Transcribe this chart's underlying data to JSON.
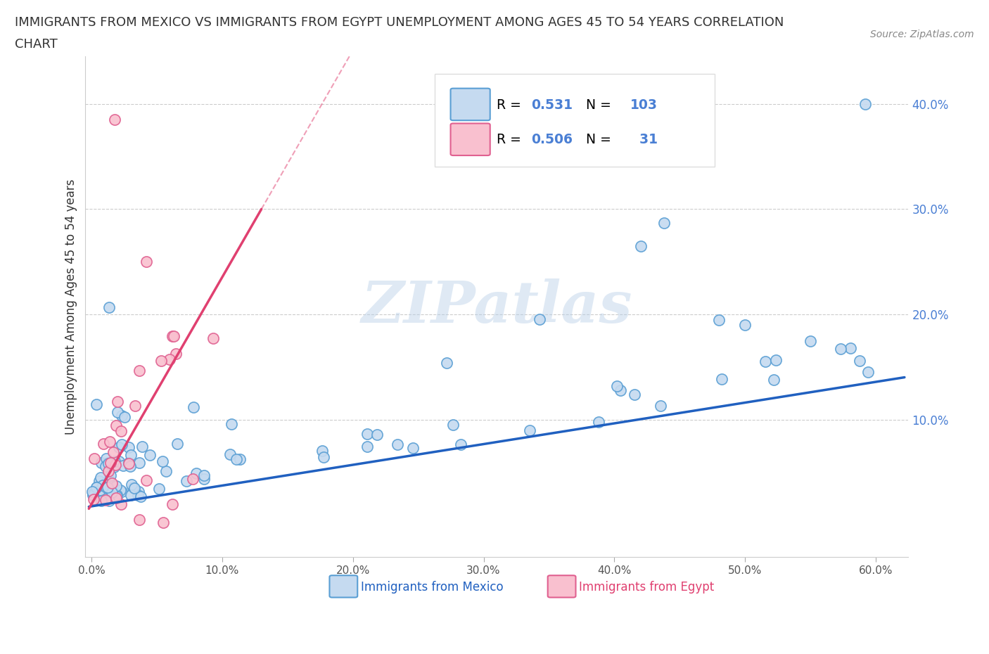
{
  "title_line1": "IMMIGRANTS FROM MEXICO VS IMMIGRANTS FROM EGYPT UNEMPLOYMENT AMONG AGES 45 TO 54 YEARS CORRELATION",
  "title_line2": "CHART",
  "source": "Source: ZipAtlas.com",
  "ylabel": "Unemployment Among Ages 45 to 54 years",
  "xlim": [
    -0.005,
    0.625
  ],
  "ylim": [
    -0.03,
    0.445
  ],
  "xticks": [
    0.0,
    0.1,
    0.2,
    0.3,
    0.4,
    0.5,
    0.6
  ],
  "xtick_labels": [
    "0.0%",
    "10.0%",
    "20.0%",
    "30.0%",
    "40.0%",
    "50.0%",
    "60.0%"
  ],
  "ytick_labels": [
    "10.0%",
    "20.0%",
    "30.0%",
    "40.0%"
  ],
  "yticks": [
    0.1,
    0.2,
    0.3,
    0.4
  ],
  "mexico_fill": "#c5daf0",
  "mexico_edge": "#5a9fd4",
  "egypt_fill": "#f9c0cf",
  "egypt_edge": "#e06090",
  "trendline_mexico_color": "#2060c0",
  "trendline_egypt_color": "#e04070",
  "yticklabel_color": "#4a7fd4",
  "R_mexico": 0.531,
  "N_mexico": 103,
  "R_egypt": 0.506,
  "N_egypt": 31,
  "watermark": "ZIPatlas",
  "background": "#ffffff",
  "grid_color": "#cccccc",
  "legend_R_color": "#000000",
  "legend_N_color": "#4a7fd4"
}
